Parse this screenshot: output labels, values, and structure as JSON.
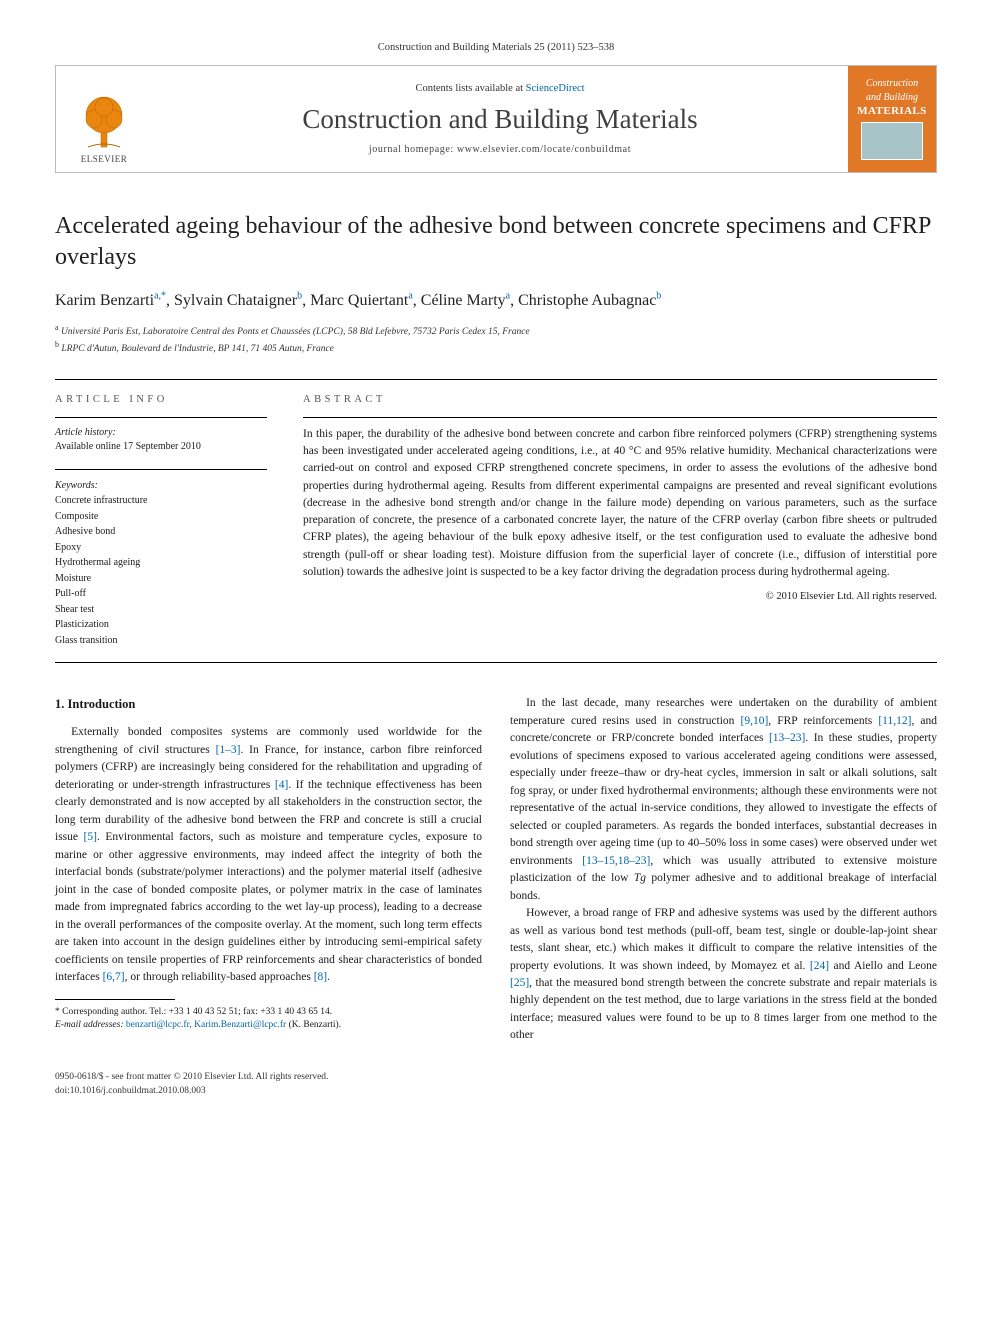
{
  "header": {
    "journal_ref": "Construction and Building Materials 25 (2011) 523–538",
    "publisher_word": "ELSEVIER",
    "contents_prefix": "Contents lists available at ",
    "contents_link": "ScienceDirect",
    "journal_name": "Construction and Building Materials",
    "homepage_prefix": "journal homepage: ",
    "homepage_url": "www.elsevier.com/locate/conbuildmat",
    "cover_top": "Construction",
    "cover_mid1": "and Building",
    "cover_mid2": "MATERIALS"
  },
  "article": {
    "title": "Accelerated ageing behaviour of the adhesive bond between concrete specimens and CFRP overlays",
    "authors_html": "Karim Benzarti<sup>a,*</sup>, Sylvain Chataigner<sup>b</sup>, Marc Quiertant<sup>a</sup>, Céline Marty<sup>a</sup>, Christophe Aubagnac<sup>b</sup>",
    "affiliations": [
      "a Université Paris Est, Laboratoire Central des Ponts et Chaussées (LCPC), 58 Bld Lefebvre, 75732 Paris Cedex 15, France",
      "b LRPC d'Autun, Boulevard de l'Industrie, BP 141, 71 405 Autun, France"
    ]
  },
  "info": {
    "heading": "ARTICLE INFO",
    "history_label": "Article history:",
    "history_value": "Available online 17 September 2010",
    "keywords_label": "Keywords:",
    "keywords": [
      "Concrete infrastructure",
      "Composite",
      "Adhesive bond",
      "Epoxy",
      "Hydrothermal ageing",
      "Moisture",
      "Pull-off",
      "Shear test",
      "Plasticization",
      "Glass transition"
    ]
  },
  "abstract": {
    "heading": "ABSTRACT",
    "text": "In this paper, the durability of the adhesive bond between concrete and carbon fibre reinforced polymers (CFRP) strengthening systems has been investigated under accelerated ageing conditions, i.e., at 40 °C and 95% relative humidity. Mechanical characterizations were carried-out on control and exposed CFRP strengthened concrete specimens, in order to assess the evolutions of the adhesive bond properties during hydrothermal ageing. Results from different experimental campaigns are presented and reveal significant evolutions (decrease in the adhesive bond strength and/or change in the failure mode) depending on various parameters, such as the surface preparation of concrete, the presence of a carbonated concrete layer, the nature of the CFRP overlay (carbon fibre sheets or pultruded CFRP plates), the ageing behaviour of the bulk epoxy adhesive itself, or the test configuration used to evaluate the adhesive bond strength (pull-off or shear loading test). Moisture diffusion from the superficial layer of concrete (i.e., diffusion of interstitial pore solution) towards the adhesive joint is suspected to be a key factor driving the degradation process during hydrothermal ageing.",
    "copyright": "© 2010 Elsevier Ltd. All rights reserved."
  },
  "body": {
    "section_heading": "1. Introduction",
    "p1_a": "Externally bonded composites systems are commonly used worldwide for the strengthening of civil structures ",
    "p1_ref1": "[1–3]",
    "p1_b": ". In France, for instance, carbon fibre reinforced polymers (CFRP) are increasingly being considered for the rehabilitation and upgrading of deteriorating or under-strength infrastructures ",
    "p1_ref2": "[4]",
    "p1_c": ". If the technique effectiveness has been clearly demonstrated and is now accepted by all stakeholders in the construction sector, the long term durability of the adhesive bond between the FRP and concrete is still a crucial issue ",
    "p1_ref3": "[5]",
    "p1_d": ". Environmental factors, such as moisture and temperature cycles, exposure to marine or other aggressive environments, may indeed affect the integrity of both the interfacial bonds (substrate/polymer interactions) and the polymer material itself (adhesive joint in the case of bonded composite plates, or polymer matrix in the case of laminates made from impregnated fabrics according to the wet lay-up process), leading to a decrease in the overall performances of the composite overlay. At the moment, such long term effects are taken into account in the design guidelines either by introducing semi-empirical safety coefficients on tensile properties of FRP reinforcements and shear characteristics of bonded interfaces ",
    "p1_ref4": "[6,7]",
    "p1_e": ", or through reliability-based approaches ",
    "p1_ref5": "[8]",
    "p1_f": ".",
    "p2_a": "In the last decade, many researches were undertaken on the durability of ambient temperature cured resins used in construction ",
    "p2_ref1": "[9,10]",
    "p2_b": ", FRP reinforcements ",
    "p2_ref2": "[11,12]",
    "p2_c": ", and concrete/concrete or FRP/concrete bonded interfaces ",
    "p2_ref3": "[13–23]",
    "p2_d": ". In these studies, property evolutions of specimens exposed to various accelerated ageing conditions were assessed, especially under freeze–thaw or dry-heat cycles, immersion in salt or alkali solutions, salt fog spray, or under fixed hydrothermal environments; although these environments were not representative of the actual in-service conditions, they allowed to investigate the effects of selected or coupled parameters. As regards the bonded interfaces, substantial decreases in bond strength over ageing time (up to 40–50% loss in some cases) were observed under wet environments ",
    "p2_ref4": "[13–15,18–23]",
    "p2_e": ", which was usually attributed to extensive moisture plasticization of the low ",
    "p2_tg": "Tg",
    "p2_f": " polymer adhesive and to additional breakage of interfacial bonds.",
    "p3_a": "However, a broad range of FRP and adhesive systems was used by the different authors as well as various bond test methods (pull-off, beam test, single or double-lap-joint shear tests, slant shear, etc.) which makes it difficult to compare the relative intensities of the property evolutions. It was shown indeed, by Momayez et al. ",
    "p3_ref1": "[24]",
    "p3_b": " and Aiello and Leone ",
    "p3_ref2": "[25]",
    "p3_c": ", that the measured bond strength between the concrete substrate and repair materials is highly dependent on the test method, due to large variations in the stress field at the bonded interface; measured values were found to be up to 8 times larger from one method to the other"
  },
  "corr": {
    "line1": "* Corresponding author. Tel.: +33 1 40 43 52 51; fax: +33 1 40 43 65 14.",
    "email_label": "E-mail addresses:",
    "emails": "benzarti@lcpc.fr, Karim.Benzarti@lcpc.fr",
    "who": "(K. Benzarti)."
  },
  "footer": {
    "left": "0950-0618/$ - see front matter © 2010 Elsevier Ltd. All rights reserved.",
    "doi": "doi:10.1016/j.conbuildmat.2010.08.003"
  },
  "colors": {
    "link": "#0066aa",
    "cover_bg": "#e07828",
    "cover_img": "#a8c4c8",
    "text": "#1a1a1a",
    "tree": "#e8860f"
  }
}
